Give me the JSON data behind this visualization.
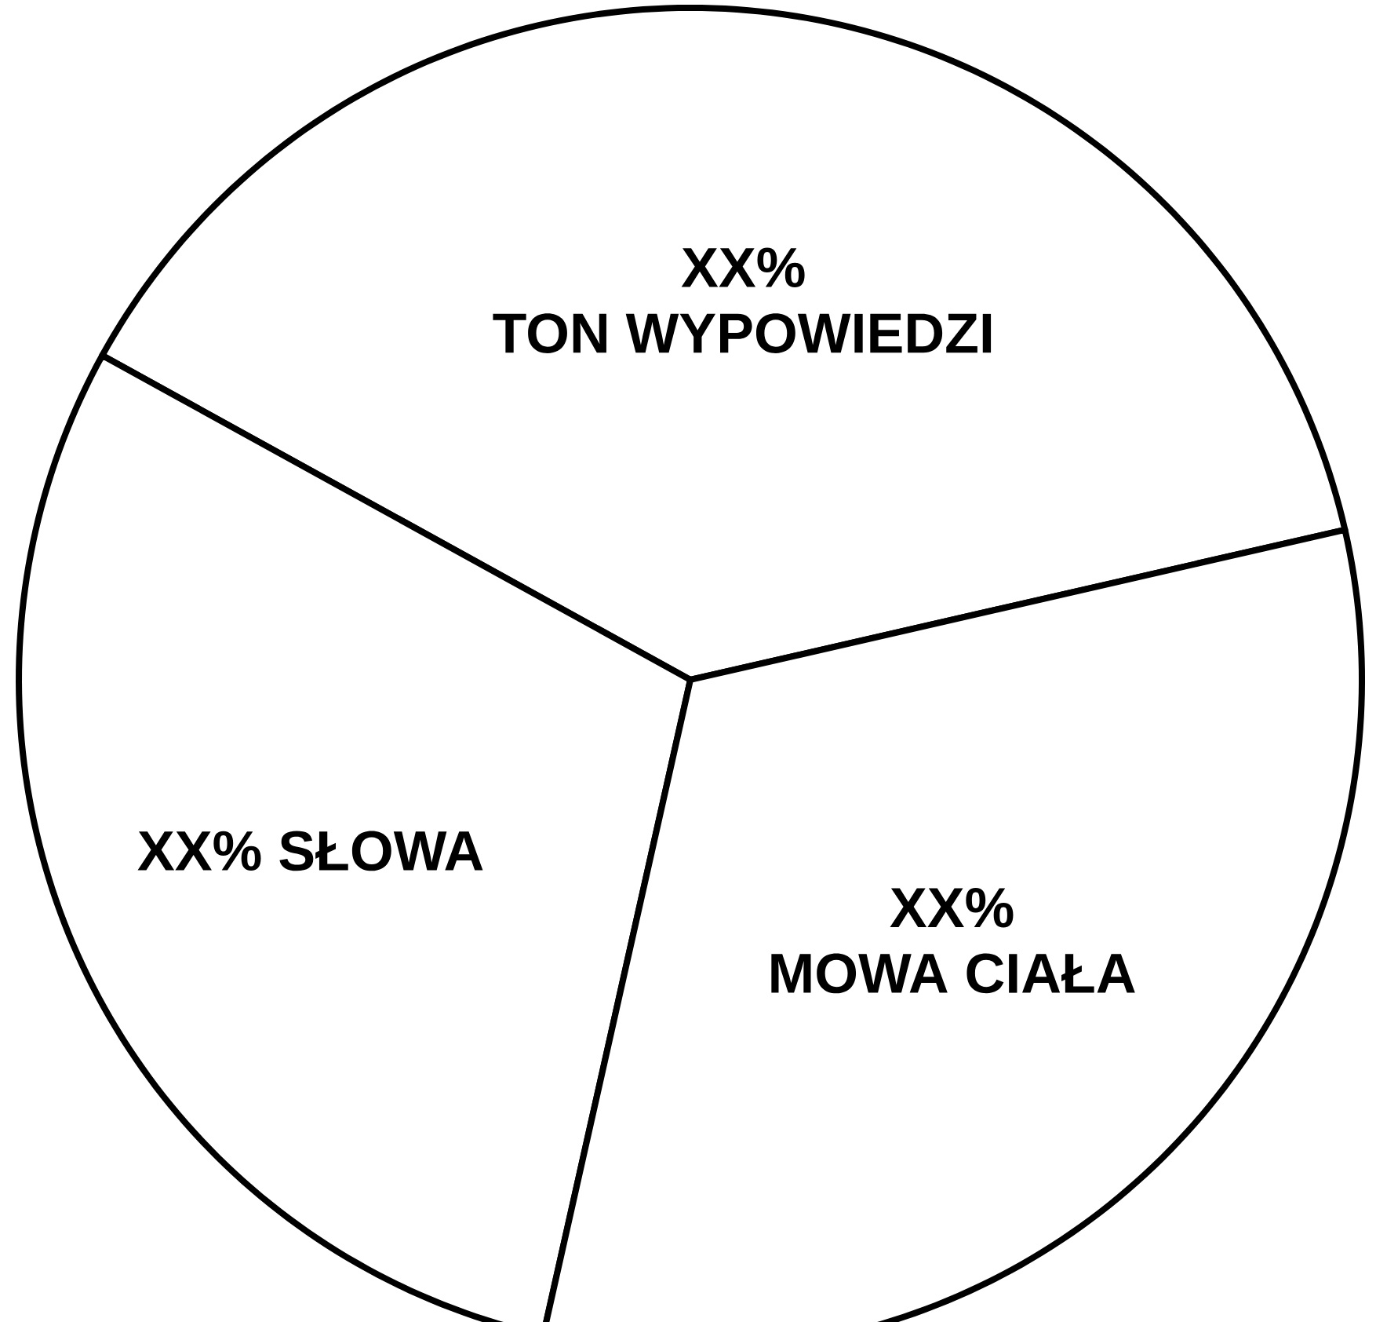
{
  "chart_data": {
    "type": "pie",
    "categories": [
      "TON WYPOWIEDZI",
      "SŁOWA",
      "MOWA CIAŁA"
    ],
    "values": [
      38.4,
      29.5,
      32.1
    ],
    "value_labels": [
      "XX%",
      "XX%",
      "XX%"
    ],
    "colors": [
      "#ffffff",
      "#ffffff",
      "#ffffff"
    ]
  }
}
